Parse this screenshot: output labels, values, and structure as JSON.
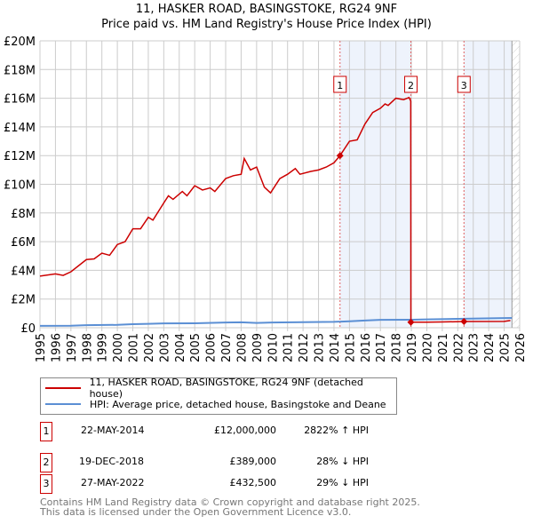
{
  "title": "11, HASKER ROAD, BASINGSTOKE, RG24 9NF",
  "subtitle": "Price paid vs. HM Land Registry's House Price Index (HPI)",
  "colors": {
    "property": "#cc0000",
    "hpi": "#5b8fd4",
    "shade": "#eef3fc"
  },
  "chart_data": {
    "type": "line",
    "title": "Price paid vs. HM Land Registry's House Price Index (HPI)",
    "xlim": [
      1995,
      2026
    ],
    "ylim": [
      0,
      20000000
    ],
    "yticks": [
      "£0",
      "£2M",
      "£4M",
      "£6M",
      "£8M",
      "£10M",
      "£12M",
      "£14M",
      "£16M",
      "£18M",
      "£20M"
    ],
    "xticks": [
      "1995",
      "1996",
      "1997",
      "1998",
      "1999",
      "2000",
      "2001",
      "2002",
      "2003",
      "2004",
      "2005",
      "2006",
      "2007",
      "2008",
      "2009",
      "2010",
      "2011",
      "2012",
      "2013",
      "2014",
      "2015",
      "2016",
      "2017",
      "2018",
      "2019",
      "2020",
      "2021",
      "2022",
      "2023",
      "2024",
      "2025",
      "2026"
    ],
    "grid": true,
    "shaded_ranges": [
      [
        2014.39,
        2018.97
      ],
      [
        2022.4,
        2025.5
      ]
    ],
    "series": [
      {
        "name": "11, HASKER ROAD, BASINGSTOKE, RG24 9NF (detached house)",
        "x": [
          1995,
          1996,
          1996.5,
          1997,
          1998,
          1998.5,
          1999,
          1999.5,
          2000,
          2000.5,
          2001,
          2001.5,
          2002,
          2002.3,
          2003,
          2003.3,
          2003.6,
          2004.2,
          2004.5,
          2005,
          2005.5,
          2006,
          2006.3,
          2007,
          2007.5,
          2008,
          2008.2,
          2008.6,
          2009,
          2009.5,
          2009.9,
          2010.5,
          2011,
          2011.5,
          2011.8,
          2012.5,
          2013,
          2013.5,
          2014,
          2014.39,
          2015,
          2015.5,
          2016,
          2016.5,
          2017,
          2017.3,
          2017.5,
          2018,
          2018.5,
          2018.85,
          2018.96,
          2018.97,
          2020,
          2021,
          2022.4,
          2025,
          2025.4
        ],
        "y": [
          3.6,
          3.75,
          3.65,
          3.9,
          4.75,
          4.8,
          5.2,
          5.05,
          5.8,
          6.0,
          6.9,
          6.9,
          7.7,
          7.5,
          8.7,
          9.2,
          8.95,
          9.5,
          9.2,
          9.9,
          9.6,
          9.75,
          9.5,
          10.4,
          10.6,
          10.7,
          11.8,
          11.0,
          11.2,
          9.8,
          9.4,
          10.4,
          10.7,
          11.1,
          10.7,
          10.9,
          11.0,
          11.2,
          11.5,
          12.0,
          13.0,
          13.1,
          14.2,
          15.0,
          15.3,
          15.6,
          15.5,
          16.0,
          15.9,
          16.05,
          15.8,
          0.389,
          0.39,
          0.4,
          0.4325,
          0.44,
          0.5
        ],
        "unit": "£M"
      },
      {
        "name": "HPI: Average price, detached house, Basingstoke and Deane",
        "x": [
          1995,
          1997,
          1998,
          2000,
          2001,
          2002,
          2003,
          2005,
          2007,
          2008,
          2009,
          2010,
          2014,
          2015,
          2016,
          2017,
          2019,
          2020,
          2022,
          2025.5
        ],
        "y": [
          0.13,
          0.14,
          0.18,
          0.2,
          0.25,
          0.27,
          0.3,
          0.31,
          0.36,
          0.38,
          0.33,
          0.36,
          0.41,
          0.45,
          0.5,
          0.55,
          0.56,
          0.58,
          0.62,
          0.68
        ],
        "unit": "£M"
      }
    ],
    "markers": [
      {
        "label": "1",
        "x": 2014.39,
        "y": 12.0
      },
      {
        "label": "2",
        "x": 2018.97,
        "y": 0.389
      },
      {
        "label": "3",
        "x": 2022.4,
        "y": 0.4325
      }
    ]
  },
  "legend": {
    "property": "11, HASKER ROAD, BASINGSTOKE, RG24 9NF (detached house)",
    "hpi": "HPI: Average price, detached house, Basingstoke and Deane"
  },
  "sales": [
    {
      "num": "1",
      "date": "22-MAY-2014",
      "price": "£12,000,000",
      "hpi": "2822% ↑ HPI"
    },
    {
      "num": "2",
      "date": "19-DEC-2018",
      "price": "£389,000",
      "hpi": "28% ↓ HPI"
    },
    {
      "num": "3",
      "date": "27-MAY-2022",
      "price": "£432,500",
      "hpi": "29% ↓ HPI"
    }
  ],
  "footer": {
    "line1": "Contains HM Land Registry data © Crown copyright and database right 2025.",
    "line2": "This data is licensed under the Open Government Licence v3.0."
  }
}
